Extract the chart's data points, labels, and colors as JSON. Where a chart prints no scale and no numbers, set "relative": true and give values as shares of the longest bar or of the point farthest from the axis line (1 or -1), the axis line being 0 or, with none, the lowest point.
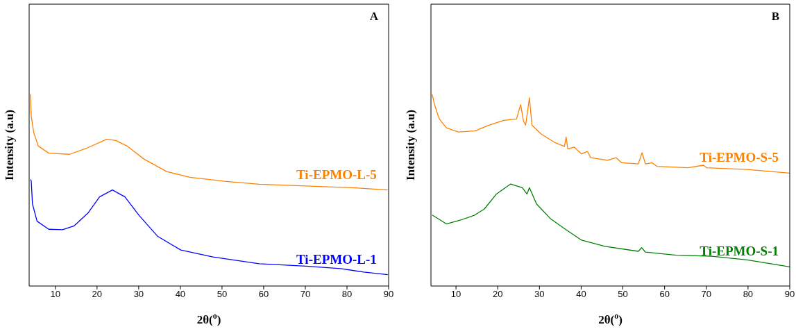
{
  "chart_data": [
    {
      "type": "line",
      "title": "A",
      "xlabel": "2θ($^{o}$)",
      "ylabel": "Intensity (a.u)",
      "relative": true,
      "xlim": [
        3.7,
        90
      ],
      "xticks": [
        10,
        20,
        30,
        40,
        50,
        60,
        70,
        80,
        90
      ],
      "series": [
        {
          "name": "Ti-EPMO-L-5",
          "color": "#ff8000",
          "x": [
            4.0,
            4.2,
            4.8,
            5.9,
            8.4,
            13.4,
            17.3,
            22.3,
            24.5,
            27.3,
            31.2,
            36.7,
            42.3,
            50.6,
            58.9,
            70,
            81.2,
            89.8
          ],
          "values": [
            1.0,
            0.886,
            0.8,
            0.73,
            0.693,
            0.687,
            0.717,
            0.765,
            0.759,
            0.729,
            0.663,
            0.597,
            0.567,
            0.546,
            0.531,
            0.522,
            0.513,
            0.501
          ]
        },
        {
          "name": "Ti-EPMO-L-1",
          "color": "#0000ff",
          "x": [
            4,
            4.2,
            4.5,
            5.6,
            8.4,
            11.7,
            14.5,
            17.8,
            20.6,
            23.7,
            26.7,
            30.1,
            34.5,
            40.1,
            47.8,
            58.9,
            70.1,
            78.4,
            84,
            89.8
          ],
          "values": [
            0.555,
            0.549,
            0.428,
            0.338,
            0.296,
            0.294,
            0.314,
            0.38,
            0.465,
            0.501,
            0.465,
            0.368,
            0.26,
            0.188,
            0.152,
            0.116,
            0.104,
            0.091,
            0.073,
            0.059
          ]
        }
      ]
    },
    {
      "type": "line",
      "title": "B",
      "xlabel": "2θ($^{o}$)",
      "ylabel": "Intensity (a.u)",
      "relative": true,
      "xlim": [
        4,
        90
      ],
      "xticks": [
        10,
        20,
        30,
        40,
        50,
        60,
        70,
        80,
        90
      ],
      "series": [
        {
          "name": "Ti-EPMO-S-5",
          "color": "#ff8000",
          "x": [
            4.3,
            4.9,
            6,
            7.7,
            10.6,
            14.5,
            17.9,
            21.4,
            24.5,
            25.5,
            26.2,
            26.7,
            27.6,
            28.2,
            30.4,
            33.8,
            36,
            36.4,
            36.8,
            38.3,
            40.1,
            41.5,
            42.3,
            46.3,
            48.4,
            49.7,
            53.7,
            54.6,
            55.4,
            57,
            58.2,
            65.6,
            69.3,
            70.1,
            79.8,
            90
          ],
          "values": [
            1.0,
            0.943,
            0.871,
            0.825,
            0.803,
            0.809,
            0.839,
            0.864,
            0.871,
            0.946,
            0.858,
            0.839,
            0.982,
            0.839,
            0.793,
            0.747,
            0.728,
            0.777,
            0.715,
            0.725,
            0.689,
            0.702,
            0.669,
            0.656,
            0.669,
            0.643,
            0.637,
            0.695,
            0.637,
            0.643,
            0.624,
            0.617,
            0.63,
            0.617,
            0.608,
            0.589
          ]
        },
        {
          "name": "Ti-EPMO-S-1",
          "color": "#008000",
          "x": [
            4.3,
            7.7,
            11.1,
            14.5,
            16.8,
            19.7,
            23.1,
            25.9,
            27,
            27.6,
            29.3,
            32.7,
            36.1,
            40.1,
            45.7,
            53.7,
            54.5,
            55.4,
            62.8,
            71.3,
            79.8,
            90
          ],
          "values": [
            0.37,
            0.324,
            0.344,
            0.37,
            0.402,
            0.48,
            0.532,
            0.513,
            0.48,
            0.513,
            0.428,
            0.35,
            0.298,
            0.239,
            0.207,
            0.181,
            0.2,
            0.177,
            0.161,
            0.155,
            0.136,
            0.1
          ]
        }
      ]
    }
  ]
}
